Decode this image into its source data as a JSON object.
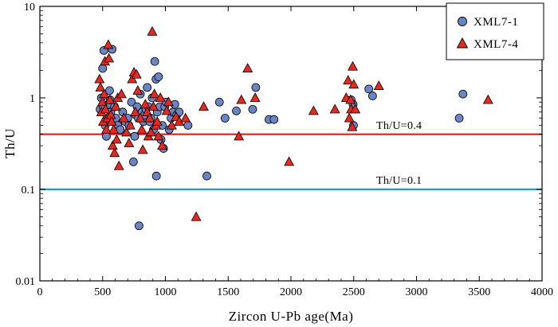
{
  "chart_data": {
    "type": "scatter",
    "xlabel": "Zircon U-Pb age(Ma)",
    "ylabel": "Th/U",
    "xlim": [
      0,
      4000
    ],
    "ylim": [
      0.01,
      10
    ],
    "yscale": "log",
    "x_ticks": [
      0,
      500,
      1000,
      1500,
      2000,
      2500,
      3000,
      3500,
      4000
    ],
    "y_ticks": [
      {
        "value": 0.01,
        "label": "0.01"
      },
      {
        "value": 0.1,
        "label": "0.1"
      },
      {
        "value": 1,
        "label": "1"
      },
      {
        "value": 10,
        "label": "10"
      }
    ],
    "legend_position": "top-right",
    "reference_lines": [
      {
        "y": 0.4,
        "label": "Th/U=0.4",
        "color": "#e8281e"
      },
      {
        "y": 0.1,
        "label": "Th/U=0.1",
        "color": "#1a9ad6"
      }
    ],
    "series": [
      {
        "name": "XML7-1",
        "marker": "circle",
        "color": "#6b84c4",
        "points": [
          [
            480,
            0.75
          ],
          [
            490,
            1.0
          ],
          [
            500,
            2.1
          ],
          [
            505,
            0.8
          ],
          [
            510,
            3.3
          ],
          [
            520,
            0.5
          ],
          [
            530,
            0.38
          ],
          [
            540,
            0.6
          ],
          [
            545,
            0.85
          ],
          [
            555,
            1.2
          ],
          [
            560,
            0.95
          ],
          [
            565,
            0.7
          ],
          [
            575,
            3.4
          ],
          [
            580,
            0.55
          ],
          [
            595,
            0.8
          ],
          [
            605,
            0.6
          ],
          [
            620,
            0.5
          ],
          [
            640,
            0.45
          ],
          [
            660,
            0.7
          ],
          [
            680,
            0.55
          ],
          [
            700,
            0.6
          ],
          [
            710,
            0.5
          ],
          [
            730,
            0.9
          ],
          [
            745,
            0.2
          ],
          [
            755,
            0.38
          ],
          [
            765,
            0.65
          ],
          [
            775,
            0.8
          ],
          [
            785,
            0.6
          ],
          [
            790,
            0.04
          ],
          [
            800,
            1.1
          ],
          [
            815,
            0.7
          ],
          [
            825,
            0.55
          ],
          [
            835,
            0.65
          ],
          [
            845,
            0.75
          ],
          [
            855,
            1.3
          ],
          [
            865,
            0.8
          ],
          [
            875,
            0.55
          ],
          [
            885,
            0.6
          ],
          [
            895,
            1.0
          ],
          [
            905,
            0.45
          ],
          [
            915,
            2.5
          ],
          [
            925,
            1.6
          ],
          [
            928,
            0.14
          ],
          [
            935,
            0.7
          ],
          [
            945,
            1.7
          ],
          [
            955,
            0.8
          ],
          [
            965,
            0.35
          ],
          [
            975,
            0.5
          ],
          [
            985,
            0.28
          ],
          [
            995,
            0.8
          ],
          [
            1005,
            0.9
          ],
          [
            1030,
            0.45
          ],
          [
            1045,
            0.6
          ],
          [
            1060,
            0.7
          ],
          [
            1075,
            0.85
          ],
          [
            1090,
            0.65
          ],
          [
            1110,
            0.7
          ],
          [
            1180,
            0.5
          ],
          [
            1330,
            0.14
          ],
          [
            1430,
            0.9
          ],
          [
            1475,
            0.6
          ],
          [
            1565,
            0.72
          ],
          [
            1695,
            0.75
          ],
          [
            1720,
            1.3
          ],
          [
            1825,
            0.58
          ],
          [
            1865,
            0.58
          ],
          [
            2480,
            0.95
          ],
          [
            2495,
            0.85
          ],
          [
            2498,
            0.5
          ],
          [
            2620,
            1.25
          ],
          [
            2650,
            1.05
          ],
          [
            3340,
            0.6
          ],
          [
            3370,
            1.1
          ]
        ]
      },
      {
        "name": "XML7-4",
        "marker": "triangle",
        "color": "#e8281e",
        "points": [
          [
            475,
            1.6
          ],
          [
            482,
            1.3
          ],
          [
            490,
            0.7
          ],
          [
            498,
            0.9
          ],
          [
            505,
            0.55
          ],
          [
            512,
            1.1
          ],
          [
            518,
            2.5
          ],
          [
            522,
            0.75
          ],
          [
            530,
            0.45
          ],
          [
            538,
            0.6
          ],
          [
            545,
            3.8
          ],
          [
            550,
            2.7
          ],
          [
            558,
            0.95
          ],
          [
            565,
            0.65
          ],
          [
            572,
            0.55
          ],
          [
            580,
            0.3
          ],
          [
            588,
            0.45
          ],
          [
            595,
            0.25
          ],
          [
            605,
            0.8
          ],
          [
            612,
            0.35
          ],
          [
            620,
            1.0
          ],
          [
            630,
            0.18
          ],
          [
            650,
            1.1
          ],
          [
            668,
            0.6
          ],
          [
            690,
            0.42
          ],
          [
            710,
            0.32
          ],
          [
            720,
            0.5
          ],
          [
            735,
            1.6
          ],
          [
            750,
            1.9
          ],
          [
            760,
            0.7
          ],
          [
            770,
            1.8
          ],
          [
            780,
            1.2
          ],
          [
            800,
            0.6
          ],
          [
            812,
            0.45
          ],
          [
            820,
            0.27
          ],
          [
            840,
            0.85
          ],
          [
            855,
            0.7
          ],
          [
            865,
            0.38
          ],
          [
            875,
            0.6
          ],
          [
            885,
            0.42
          ],
          [
            895,
            5.3
          ],
          [
            905,
            0.8
          ],
          [
            912,
            1.1
          ],
          [
            925,
            0.5
          ],
          [
            935,
            0.55
          ],
          [
            945,
            0.38
          ],
          [
            960,
            1.0
          ],
          [
            975,
            0.3
          ],
          [
            1010,
            0.72
          ],
          [
            1025,
            0.9
          ],
          [
            1050,
            0.5
          ],
          [
            1085,
            0.62
          ],
          [
            1110,
            0.55
          ],
          [
            1160,
            0.6
          ],
          [
            1245,
            0.05
          ],
          [
            1305,
            0.8
          ],
          [
            1585,
            0.38
          ],
          [
            1605,
            0.95
          ],
          [
            1655,
            2.1
          ],
          [
            1715,
            1.0
          ],
          [
            1985,
            0.2
          ],
          [
            2180,
            0.72
          ],
          [
            2350,
            0.75
          ],
          [
            2440,
            1.0
          ],
          [
            2455,
            1.55
          ],
          [
            2465,
            0.6
          ],
          [
            2475,
            0.95
          ],
          [
            2480,
            0.75
          ],
          [
            2488,
            0.48
          ],
          [
            2492,
            2.2
          ],
          [
            2500,
            1.4
          ],
          [
            2512,
            0.75
          ],
          [
            2700,
            1.35
          ],
          [
            3570,
            0.95
          ]
        ]
      }
    ]
  }
}
